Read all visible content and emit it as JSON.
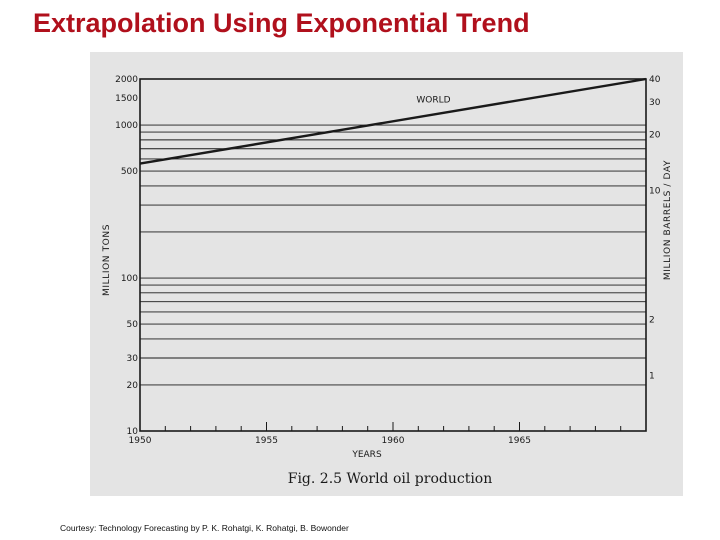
{
  "slide": {
    "title": "Extrapolation Using Exponential Trend",
    "courtesy": "Courtesy: Technology Forecasting by P. K. Rohatgi, K. Rohatgi, B. Bowonder"
  },
  "colors": {
    "title": "#b0101c",
    "scan_background": "#e4e4e4",
    "ink": "#1a1a1a"
  },
  "chart_data": {
    "type": "line",
    "caption": "Fig. 2.5  World oil production",
    "xlabel": "YEARS",
    "ylabel_left": "MILLION TONS",
    "ylabel_right": "MILLION BARRELS / DAY",
    "xlim": [
      1950,
      1970
    ],
    "ylim_left": [
      10,
      2000
    ],
    "ylim_right": [
      0.5,
      40
    ],
    "scale": "log",
    "grid": true,
    "x_ticks": [
      1950,
      1955,
      1960,
      1965
    ],
    "x_tick_labels": [
      "1950",
      "1955",
      "1960",
      "1965"
    ],
    "left_ticks": [
      10,
      20,
      30,
      50,
      100,
      500,
      1000,
      1500,
      2000
    ],
    "left_tick_labels": [
      "10",
      "20",
      "30",
      "50",
      "100",
      "500",
      "1000",
      "1500",
      "2000"
    ],
    "right_ticks": [
      1,
      2,
      10,
      20,
      30,
      40
    ],
    "right_tick_labels": [
      "1",
      "2",
      "10",
      "20",
      "30",
      "40"
    ],
    "series": [
      {
        "name": "WORLD",
        "x": [
          1950,
          1970
        ],
        "y": [
          560,
          2000
        ]
      }
    ]
  }
}
